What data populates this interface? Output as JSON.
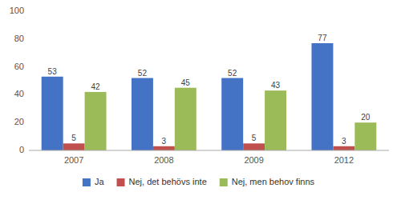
{
  "chart_data": {
    "type": "bar",
    "categories": [
      "2007",
      "2008",
      "2009",
      "2012"
    ],
    "series": [
      {
        "name": "Ja",
        "color": "#4472C4",
        "values": [
          53,
          52,
          52,
          77
        ]
      },
      {
        "name": "Nej, det behövs inte",
        "color": "#C0504D",
        "values": [
          5,
          3,
          5,
          3
        ]
      },
      {
        "name": "Nej, men behov finns",
        "color": "#9BBB59",
        "values": [
          42,
          45,
          43,
          20
        ]
      }
    ],
    "ylim": [
      0,
      100
    ],
    "yticks": [
      0,
      20,
      40,
      60,
      80,
      100
    ],
    "grid": false,
    "legend": "bottom",
    "data_labels": true
  }
}
